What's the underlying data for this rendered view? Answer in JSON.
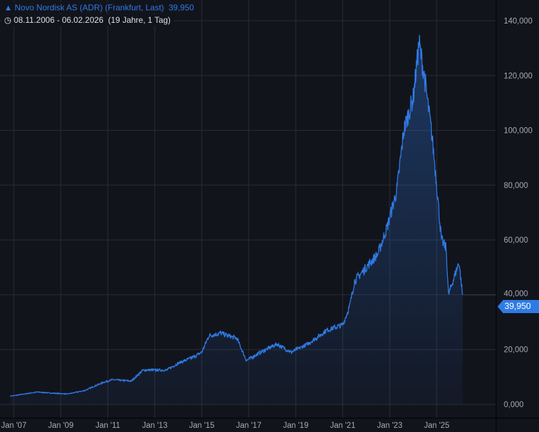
{
  "header": {
    "title": "Novo Nordisk AS (ADR) (Frankfurt, Last)",
    "last_value": "39,950",
    "range": "08.11.2006 - 06.02.2026",
    "duration": "(19 Jahre, 1 Tag)"
  },
  "chart_data": {
    "type": "area",
    "title": "Novo Nordisk AS (ADR) (Frankfurt, Last)",
    "xlabel": "",
    "ylabel": "",
    "ylim": [
      0,
      140000
    ],
    "xlim": [
      2006.4,
      2027.0
    ],
    "grid": true,
    "line_color": "#2f7be6",
    "y_ticks": [
      0,
      20000,
      40000,
      60000,
      80000,
      100000,
      120000,
      140000
    ],
    "y_tick_labels": [
      "0,000",
      "20,000",
      "40,000",
      "60,000",
      "80,000",
      "100,000",
      "120,000",
      "140,000"
    ],
    "x_ticks": [
      2007,
      2009,
      2011,
      2013,
      2015,
      2017,
      2019,
      2021,
      2023,
      2025
    ],
    "x_tick_labels": [
      "Jan '07",
      "Jan '09",
      "Jan '11",
      "Jan '13",
      "Jan '15",
      "Jan '17",
      "Jan '19",
      "Jan '21",
      "Jan '23",
      "Jan '25"
    ],
    "last_label": "39,950",
    "x": [
      2006.85,
      2008.0,
      2008.8,
      2009.3,
      2010.0,
      2010.8,
      2011.2,
      2012.0,
      2012.5,
      2013.5,
      2014.0,
      2014.7,
      2015.0,
      2015.3,
      2015.8,
      2016.5,
      2016.7,
      2016.9,
      2017.5,
      2018.2,
      2018.8,
      2019.5,
      2020.0,
      2020.3,
      2021.0,
      2021.3,
      2021.5,
      2022.0,
      2022.5,
      2022.9,
      2023.3,
      2023.6,
      2024.0,
      2024.25,
      2024.5,
      2024.8,
      2025.0,
      2025.2,
      2025.4,
      2025.5,
      2025.8,
      2025.95,
      2026.1
    ],
    "values": [
      3000,
      4500,
      4000,
      3800,
      5000,
      8000,
      9000,
      8500,
      12500,
      12500,
      15000,
      17500,
      19000,
      25000,
      26000,
      24000,
      20000,
      16000,
      19000,
      22000,
      19000,
      22000,
      25000,
      27000,
      29000,
      36000,
      45000,
      50000,
      55000,
      65000,
      78000,
      100000,
      112000,
      132000,
      118000,
      98000,
      80000,
      60000,
      57000,
      40000,
      48000,
      52000,
      39950
    ]
  }
}
